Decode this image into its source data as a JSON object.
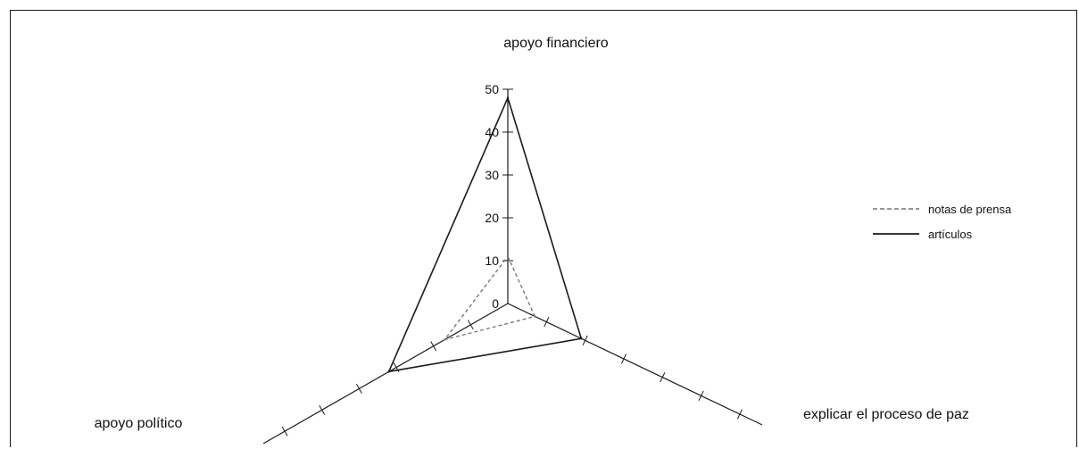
{
  "chart_data": {
    "type": "radar",
    "axes": [
      "apoyo financiero",
      "explicar el proceso de paz",
      "apoyo político"
    ],
    "rlim": [
      0,
      50
    ],
    "ticks": [
      0,
      10,
      20,
      30,
      40,
      50
    ],
    "tick_labels": [
      "0",
      "10",
      "20",
      "30",
      "40",
      "50"
    ],
    "series": [
      {
        "name": "notas de prensa",
        "values": [
          11,
          7,
          17
        ],
        "style": "dashed",
        "color": "#777777"
      },
      {
        "name": "artículos",
        "values": [
          48,
          19,
          32
        ],
        "style": "solid",
        "color": "#1a1a1a"
      }
    ],
    "legend": "right",
    "grid": false
  }
}
